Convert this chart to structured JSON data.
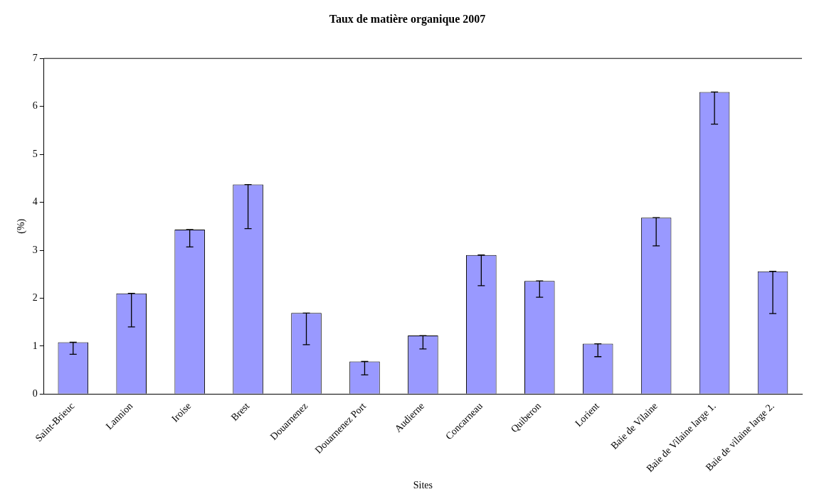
{
  "chart_data": {
    "type": "bar",
    "title": "Taux de matière organique 2007",
    "xlabel": "Sites",
    "ylabel": "(%)",
    "categories": [
      "Saint-Brieuc",
      "Lannion",
      "Iroise",
      "Brest",
      "Douarnenez",
      "Douarnenez Port",
      "Audierne",
      "Concarneau",
      "Quiberon",
      "Lorient",
      "Baie de Vilaine",
      "Baie de Vilaine large 1.",
      "Baie de vilaine large 2."
    ],
    "values": [
      1.08,
      2.1,
      3.43,
      4.37,
      1.69,
      0.68,
      1.22,
      2.9,
      2.36,
      1.05,
      3.68,
      6.3,
      2.56
    ],
    "errors": [
      [
        0.83,
        1.08
      ],
      [
        1.4,
        2.1
      ],
      [
        3.07,
        3.43
      ],
      [
        3.45,
        4.37
      ],
      [
        1.03,
        1.69
      ],
      [
        0.4,
        0.68
      ],
      [
        0.94,
        1.22
      ],
      [
        2.26,
        2.9
      ],
      [
        2.02,
        2.36
      ],
      [
        0.78,
        1.05
      ],
      [
        3.09,
        3.68
      ],
      [
        5.63,
        6.3
      ],
      [
        1.68,
        2.56
      ]
    ],
    "color": "#9999ff",
    "ylim": [
      0,
      7
    ],
    "yticks": [
      0,
      1,
      2,
      3,
      4,
      5,
      6,
      7
    ],
    "grid": false,
    "legend": false
  }
}
